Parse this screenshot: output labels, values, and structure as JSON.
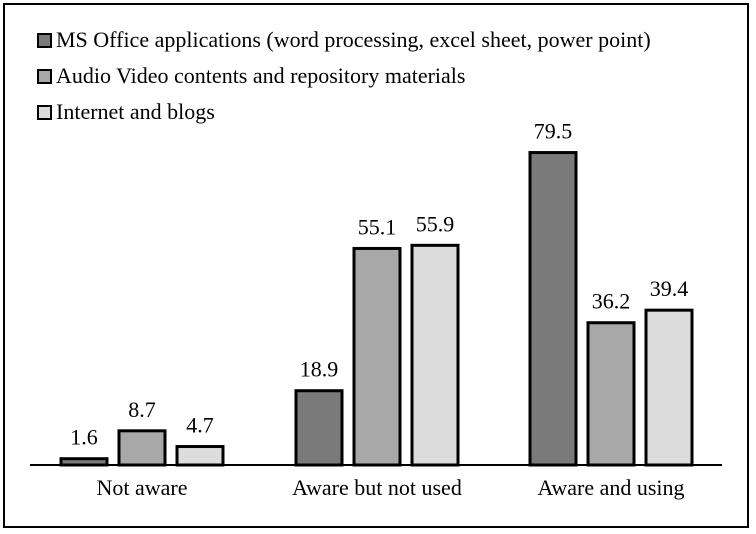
{
  "chart_data": {
    "type": "bar",
    "categories": [
      "Not aware",
      "Aware but not used",
      "Aware and using"
    ],
    "series": [
      {
        "name": "MS Office applications (word processing, excel sheet, power point)",
        "values": [
          1.6,
          18.9,
          79.5
        ],
        "color": "#7a7a7a"
      },
      {
        "name": "Audio Video contents and  repository materials",
        "values": [
          8.7,
          55.1,
          36.2
        ],
        "color": "#a8a8a8"
      },
      {
        "name": "Internet and blogs",
        "values": [
          4.7,
          55.9,
          39.4
        ],
        "color": "#dcdcdc"
      }
    ],
    "ylim": [
      0,
      100
    ],
    "grid": false,
    "legend": "top-left"
  }
}
